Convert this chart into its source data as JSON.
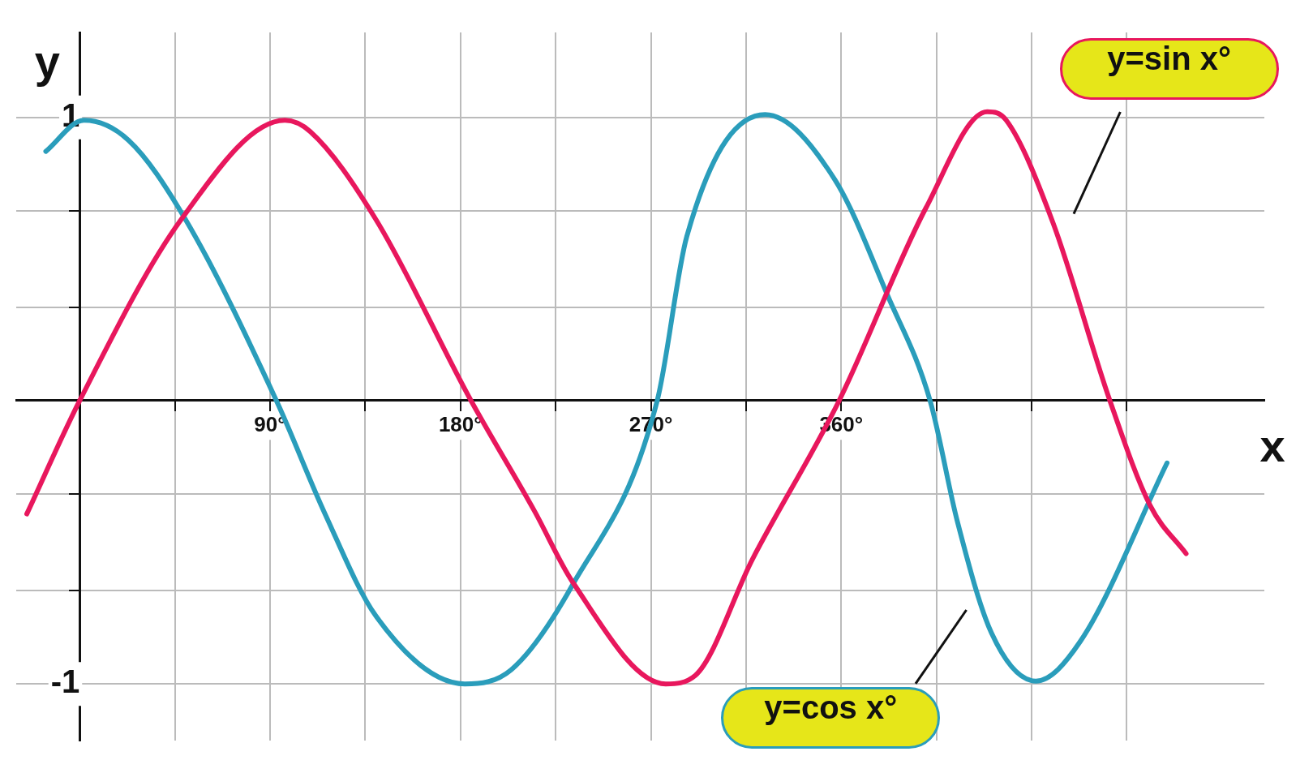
{
  "chart_data": {
    "type": "line",
    "xlabel": "x",
    "ylabel": "y",
    "xlim": [
      -30,
      560
    ],
    "ylim": [
      -1.2,
      1.3
    ],
    "xticks": [
      {
        "value": 45,
        "label": null
      },
      {
        "value": 90,
        "label": "90°"
      },
      {
        "value": 135,
        "label": null
      },
      {
        "value": 180,
        "label": "180°"
      },
      {
        "value": 225,
        "label": null
      },
      {
        "value": 270,
        "label": "270°"
      },
      {
        "value": 315,
        "label": null
      },
      {
        "value": 360,
        "label": "360°"
      },
      {
        "value": 405,
        "label": null
      },
      {
        "value": 450,
        "label": null
      },
      {
        "value": 495,
        "label": null
      }
    ],
    "yticks": [
      {
        "value": -1,
        "label": "-1"
      },
      {
        "value": -0.67,
        "label": null
      },
      {
        "value": -0.33,
        "label": null
      },
      {
        "value": 0.33,
        "label": null
      },
      {
        "value": 0.67,
        "label": null
      },
      {
        "value": 1,
        "label": "1"
      }
    ],
    "grid": true,
    "legend": false,
    "marker": "none",
    "line_style": "solid",
    "series": [
      {
        "name": "y=sin x°",
        "color": "#e8175d",
        "x": [
          -25,
          0,
          48,
          97,
          109,
          140,
          185,
          215,
          233,
          277,
          291,
          318,
          359,
          400,
          429,
          438,
          460,
          487,
          506,
          523
        ],
        "values": [
          -0.4,
          0,
          0.64,
          0.99,
          0.95,
          0.64,
          0,
          -0.39,
          -0.64,
          -1,
          -0.97,
          -0.56,
          0,
          0.68,
          1.02,
          0.99,
          0.63,
          0,
          -0.37,
          -0.54
        ]
      },
      {
        "name": "y=cos x°",
        "color": "#2a9dbb",
        "x": [
          -16,
          2,
          23,
          50,
          93,
          116,
          140,
          182,
          204,
          233,
          273,
          287,
          324,
          357,
          382,
          402,
          415,
          431,
          452,
          473,
          514
        ],
        "values": [
          0.88,
          0.99,
          0.92,
          0.64,
          0,
          -0.4,
          -0.76,
          -1,
          -0.95,
          -0.65,
          0,
          0.58,
          1.01,
          0.78,
          0.37,
          0,
          -0.43,
          -0.82,
          -0.99,
          -0.85,
          -0.22
        ]
      }
    ]
  }
}
